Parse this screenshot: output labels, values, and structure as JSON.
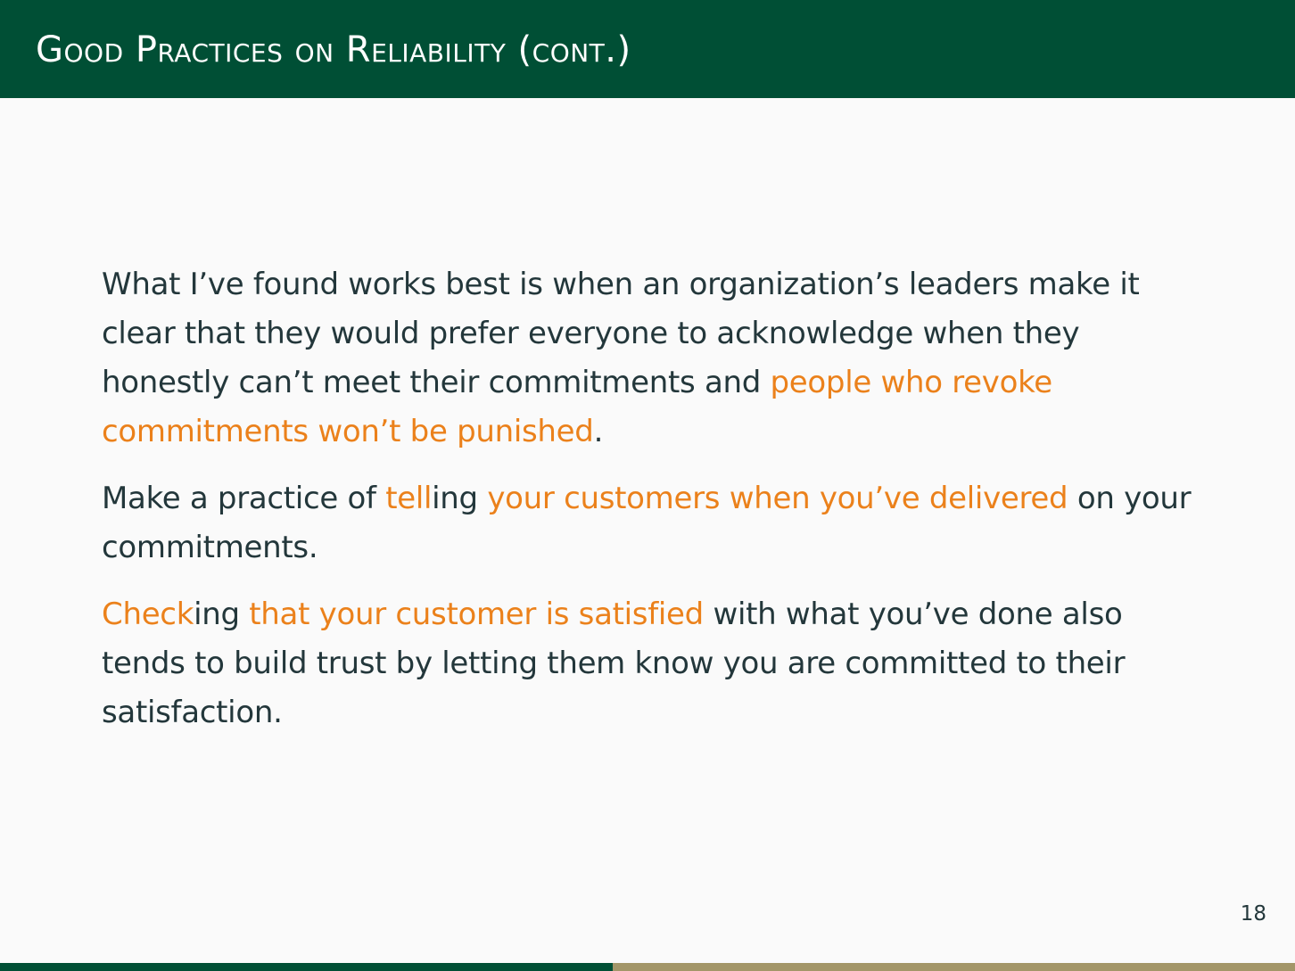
{
  "slide": {
    "title": "Good Practices on Reliability (cont.)",
    "page_number": "18"
  },
  "colors": {
    "header_bg": "#004f35",
    "text": "#23373b",
    "accent": "#eb811b",
    "progress_done": "#004f35",
    "progress_remaining": "#a39669"
  },
  "progress": {
    "fraction": 0.473
  },
  "paragraphs": [
    {
      "segments": [
        {
          "text": "What I’ve found works best is when an organization’s leaders make it clear that they would prefer everyone to acknowledge when they honestly can’t meet their commitments and ",
          "highlight": false
        },
        {
          "text": "people who revoke commitments won’t be punished",
          "highlight": true
        },
        {
          "text": ".",
          "highlight": false
        }
      ]
    },
    {
      "segments": [
        {
          "text": "Make a practice of ",
          "highlight": false
        },
        {
          "text": "tell",
          "highlight": true
        },
        {
          "text": "ing ",
          "highlight": false
        },
        {
          "text": "your customers when you’ve delivered",
          "highlight": true
        },
        {
          "text": " on your commitments.",
          "highlight": false
        }
      ]
    },
    {
      "segments": [
        {
          "text": "Check",
          "highlight": true
        },
        {
          "text": "ing ",
          "highlight": false
        },
        {
          "text": "that your customer is satisfied",
          "highlight": true
        },
        {
          "text": " with what you’ve done also tends to build trust by letting them know you are committed to their satisfaction.",
          "highlight": false
        }
      ]
    }
  ]
}
